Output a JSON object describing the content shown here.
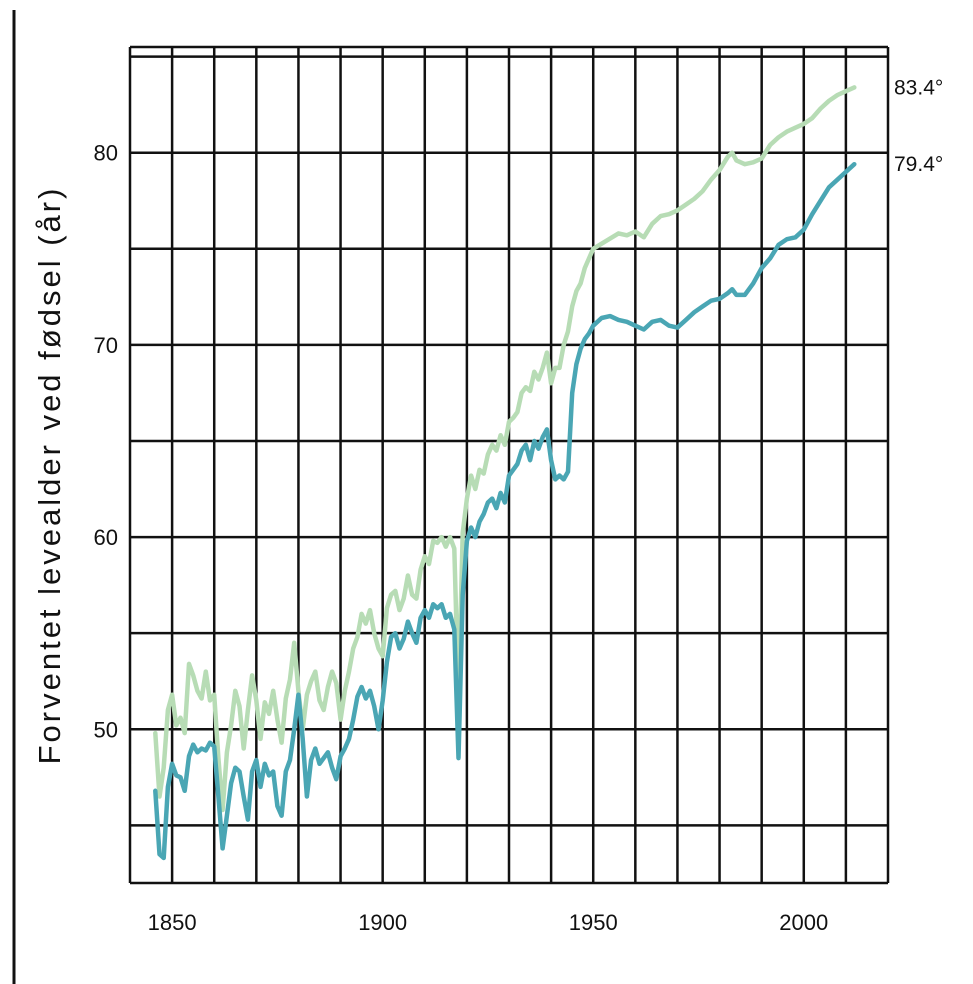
{
  "chart_data": {
    "type": "line",
    "title": "",
    "xlabel": "",
    "ylabel": "Forventet levealder ved fødsel (år)",
    "xlim": [
      1840,
      2020
    ],
    "ylim": [
      42,
      85.5
    ],
    "xticks": [
      1850,
      1900,
      1950,
      2000
    ],
    "yticks": [
      50,
      60,
      70,
      80
    ],
    "xtick_labels": [
      "1850",
      "1900",
      "1950",
      "2000"
    ],
    "ytick_labels": [
      "50",
      "60",
      "70",
      "80"
    ],
    "grid": true,
    "legend": "none",
    "end_labels": [
      "83.4°",
      "79.4°"
    ],
    "series": [
      {
        "color": "#b7dcb5",
        "end_label_index": 0,
        "points": [
          [
            1846,
            49.8
          ],
          [
            1847,
            46.5
          ],
          [
            1848,
            48.0
          ],
          [
            1849,
            51.0
          ],
          [
            1850,
            51.8
          ],
          [
            1851,
            50.2
          ],
          [
            1852,
            50.6
          ],
          [
            1853,
            49.8
          ],
          [
            1854,
            53.4
          ],
          [
            1855,
            52.8
          ],
          [
            1856,
            52.0
          ],
          [
            1857,
            51.6
          ],
          [
            1858,
            53.0
          ],
          [
            1859,
            51.5
          ],
          [
            1860,
            51.8
          ],
          [
            1861,
            48.5
          ],
          [
            1862,
            45.8
          ],
          [
            1863,
            48.8
          ],
          [
            1864,
            50.2
          ],
          [
            1865,
            52.0
          ],
          [
            1866,
            51.2
          ],
          [
            1867,
            49.0
          ],
          [
            1868,
            51.0
          ],
          [
            1869,
            52.8
          ],
          [
            1870,
            51.5
          ],
          [
            1871,
            49.5
          ],
          [
            1872,
            51.4
          ],
          [
            1873,
            50.8
          ],
          [
            1874,
            52.0
          ],
          [
            1875,
            50.5
          ],
          [
            1876,
            49.3
          ],
          [
            1877,
            51.6
          ],
          [
            1878,
            52.6
          ],
          [
            1879,
            54.5
          ],
          [
            1880,
            52.0
          ],
          [
            1881,
            50.0
          ],
          [
            1882,
            51.8
          ],
          [
            1883,
            52.5
          ],
          [
            1884,
            53.0
          ],
          [
            1885,
            51.5
          ],
          [
            1886,
            51.0
          ],
          [
            1887,
            52.2
          ],
          [
            1888,
            53.0
          ],
          [
            1889,
            52.4
          ],
          [
            1890,
            50.5
          ],
          [
            1891,
            52.0
          ],
          [
            1892,
            53.0
          ],
          [
            1893,
            54.2
          ],
          [
            1894,
            54.8
          ],
          [
            1895,
            56.0
          ],
          [
            1896,
            55.5
          ],
          [
            1897,
            56.2
          ],
          [
            1898,
            55.0
          ],
          [
            1899,
            54.2
          ],
          [
            1900,
            53.8
          ],
          [
            1901,
            56.3
          ],
          [
            1902,
            57.0
          ],
          [
            1903,
            57.2
          ],
          [
            1904,
            56.2
          ],
          [
            1905,
            56.8
          ],
          [
            1906,
            58.0
          ],
          [
            1907,
            57.0
          ],
          [
            1908,
            56.8
          ],
          [
            1909,
            58.3
          ],
          [
            1910,
            59.0
          ],
          [
            1911,
            58.6
          ],
          [
            1912,
            59.8
          ],
          [
            1913,
            59.7
          ],
          [
            1914,
            60.0
          ],
          [
            1915,
            59.5
          ],
          [
            1916,
            60.0
          ],
          [
            1917,
            59.4
          ],
          [
            1918,
            51.5
          ],
          [
            1919,
            60.2
          ],
          [
            1920,
            62.0
          ],
          [
            1921,
            63.2
          ],
          [
            1922,
            62.5
          ],
          [
            1923,
            63.5
          ],
          [
            1924,
            63.3
          ],
          [
            1925,
            64.3
          ],
          [
            1926,
            64.8
          ],
          [
            1927,
            64.5
          ],
          [
            1928,
            65.3
          ],
          [
            1929,
            64.8
          ],
          [
            1930,
            66.0
          ],
          [
            1931,
            66.2
          ],
          [
            1932,
            66.5
          ],
          [
            1933,
            67.5
          ],
          [
            1934,
            67.8
          ],
          [
            1935,
            67.6
          ],
          [
            1936,
            68.6
          ],
          [
            1937,
            68.2
          ],
          [
            1938,
            68.8
          ],
          [
            1939,
            69.6
          ],
          [
            1940,
            68.0
          ],
          [
            1941,
            68.8
          ],
          [
            1942,
            68.8
          ],
          [
            1943,
            70.0
          ],
          [
            1944,
            70.7
          ],
          [
            1945,
            72.0
          ],
          [
            1946,
            72.8
          ],
          [
            1947,
            73.2
          ],
          [
            1948,
            74.0
          ],
          [
            1949,
            74.5
          ],
          [
            1950,
            75.0
          ],
          [
            1953,
            75.4
          ],
          [
            1956,
            75.8
          ],
          [
            1958,
            75.7
          ],
          [
            1960,
            75.9
          ],
          [
            1962,
            75.6
          ],
          [
            1964,
            76.3
          ],
          [
            1966,
            76.7
          ],
          [
            1968,
            76.8
          ],
          [
            1970,
            77.0
          ],
          [
            1972,
            77.3
          ],
          [
            1974,
            77.6
          ],
          [
            1976,
            78.0
          ],
          [
            1978,
            78.6
          ],
          [
            1980,
            79.1
          ],
          [
            1982,
            79.8
          ],
          [
            1983,
            80.0
          ],
          [
            1984,
            79.6
          ],
          [
            1986,
            79.4
          ],
          [
            1988,
            79.5
          ],
          [
            1990,
            79.7
          ],
          [
            1992,
            80.4
          ],
          [
            1994,
            80.8
          ],
          [
            1996,
            81.1
          ],
          [
            1998,
            81.3
          ],
          [
            2000,
            81.5
          ],
          [
            2002,
            81.8
          ],
          [
            2004,
            82.3
          ],
          [
            2006,
            82.7
          ],
          [
            2008,
            83.0
          ],
          [
            2010,
            83.2
          ],
          [
            2012,
            83.4
          ]
        ]
      },
      {
        "color": "#4aa6b4",
        "end_label_index": 1,
        "points": [
          [
            1846,
            46.8
          ],
          [
            1847,
            43.5
          ],
          [
            1848,
            43.3
          ],
          [
            1849,
            47.0
          ],
          [
            1850,
            48.2
          ],
          [
            1851,
            47.6
          ],
          [
            1852,
            47.5
          ],
          [
            1853,
            46.8
          ],
          [
            1854,
            48.6
          ],
          [
            1855,
            49.2
          ],
          [
            1856,
            48.8
          ],
          [
            1857,
            49.0
          ],
          [
            1858,
            48.9
          ],
          [
            1859,
            49.3
          ],
          [
            1860,
            49.1
          ],
          [
            1861,
            46.5
          ],
          [
            1862,
            43.8
          ],
          [
            1863,
            45.5
          ],
          [
            1864,
            47.2
          ],
          [
            1865,
            48.0
          ],
          [
            1866,
            47.8
          ],
          [
            1867,
            46.5
          ],
          [
            1868,
            45.3
          ],
          [
            1869,
            47.8
          ],
          [
            1870,
            48.4
          ],
          [
            1871,
            47.0
          ],
          [
            1872,
            48.2
          ],
          [
            1873,
            47.6
          ],
          [
            1874,
            47.8
          ],
          [
            1875,
            46.0
          ],
          [
            1876,
            45.5
          ],
          [
            1877,
            47.8
          ],
          [
            1878,
            48.4
          ],
          [
            1879,
            50.0
          ],
          [
            1880,
            51.8
          ],
          [
            1881,
            49.5
          ],
          [
            1882,
            46.5
          ],
          [
            1883,
            48.4
          ],
          [
            1884,
            49.0
          ],
          [
            1885,
            48.2
          ],
          [
            1886,
            48.5
          ],
          [
            1887,
            48.8
          ],
          [
            1888,
            48.0
          ],
          [
            1889,
            47.4
          ],
          [
            1890,
            48.6
          ],
          [
            1891,
            49.0
          ],
          [
            1892,
            49.5
          ],
          [
            1893,
            50.5
          ],
          [
            1894,
            51.7
          ],
          [
            1895,
            52.2
          ],
          [
            1896,
            51.6
          ],
          [
            1897,
            52.0
          ],
          [
            1898,
            51.2
          ],
          [
            1899,
            50.0
          ],
          [
            1900,
            51.5
          ],
          [
            1901,
            53.5
          ],
          [
            1902,
            54.8
          ],
          [
            1903,
            55.0
          ],
          [
            1904,
            54.2
          ],
          [
            1905,
            54.7
          ],
          [
            1906,
            55.6
          ],
          [
            1907,
            55.0
          ],
          [
            1908,
            54.5
          ],
          [
            1909,
            55.8
          ],
          [
            1910,
            56.2
          ],
          [
            1911,
            55.8
          ],
          [
            1912,
            56.5
          ],
          [
            1913,
            56.3
          ],
          [
            1914,
            56.5
          ],
          [
            1915,
            55.8
          ],
          [
            1916,
            56.0
          ],
          [
            1917,
            55.2
          ],
          [
            1918,
            48.5
          ],
          [
            1919,
            57.0
          ],
          [
            1920,
            59.8
          ],
          [
            1921,
            60.5
          ],
          [
            1922,
            60.0
          ],
          [
            1923,
            60.8
          ],
          [
            1924,
            61.2
          ],
          [
            1925,
            61.8
          ],
          [
            1926,
            62.0
          ],
          [
            1927,
            61.5
          ],
          [
            1928,
            62.3
          ],
          [
            1929,
            61.8
          ],
          [
            1930,
            63.2
          ],
          [
            1931,
            63.5
          ],
          [
            1932,
            63.8
          ],
          [
            1933,
            64.5
          ],
          [
            1934,
            64.8
          ],
          [
            1935,
            64.0
          ],
          [
            1936,
            65.0
          ],
          [
            1937,
            64.6
          ],
          [
            1938,
            65.2
          ],
          [
            1939,
            65.6
          ],
          [
            1940,
            64.0
          ],
          [
            1941,
            63.0
          ],
          [
            1942,
            63.2
          ],
          [
            1943,
            63.0
          ],
          [
            1944,
            63.4
          ],
          [
            1945,
            67.5
          ],
          [
            1946,
            69.0
          ],
          [
            1947,
            69.8
          ],
          [
            1948,
            70.3
          ],
          [
            1949,
            70.6
          ],
          [
            1950,
            71.0
          ],
          [
            1952,
            71.4
          ],
          [
            1954,
            71.5
          ],
          [
            1956,
            71.3
          ],
          [
            1958,
            71.2
          ],
          [
            1960,
            71.0
          ],
          [
            1962,
            70.8
          ],
          [
            1964,
            71.2
          ],
          [
            1966,
            71.3
          ],
          [
            1968,
            71.0
          ],
          [
            1970,
            70.9
          ],
          [
            1972,
            71.3
          ],
          [
            1974,
            71.7
          ],
          [
            1976,
            72.0
          ],
          [
            1978,
            72.3
          ],
          [
            1980,
            72.4
          ],
          [
            1982,
            72.7
          ],
          [
            1983,
            72.9
          ],
          [
            1984,
            72.6
          ],
          [
            1986,
            72.6
          ],
          [
            1988,
            73.2
          ],
          [
            1990,
            74.0
          ],
          [
            1992,
            74.5
          ],
          [
            1994,
            75.2
          ],
          [
            1996,
            75.5
          ],
          [
            1998,
            75.6
          ],
          [
            2000,
            76.0
          ],
          [
            2002,
            76.8
          ],
          [
            2004,
            77.5
          ],
          [
            2006,
            78.2
          ],
          [
            2008,
            78.6
          ],
          [
            2010,
            79.0
          ],
          [
            2012,
            79.4
          ]
        ]
      }
    ]
  }
}
